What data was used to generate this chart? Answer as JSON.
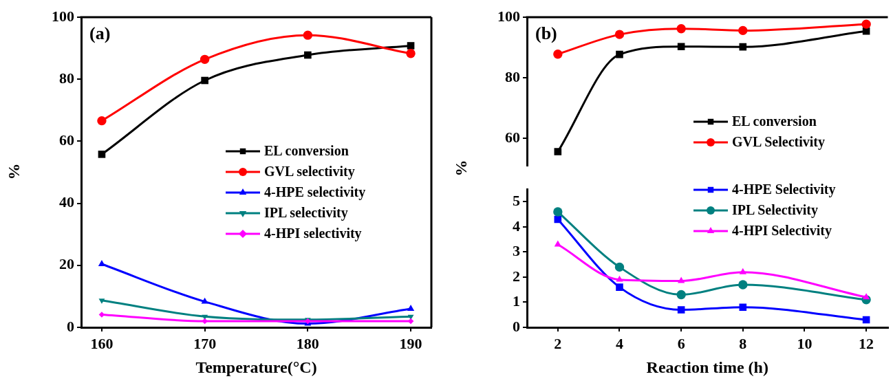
{
  "chart_data": [
    {
      "type": "line",
      "title": "(a)",
      "xlabel": "Temperature(°C)",
      "ylabel": "%",
      "x": [
        160,
        170,
        180,
        190
      ],
      "xlim": [
        158,
        192
      ],
      "xticks": [
        160,
        170,
        180,
        190
      ],
      "ylim": [
        0,
        100
      ],
      "yticks": [
        0,
        20,
        40,
        60,
        80,
        100
      ],
      "grid": false,
      "legend": "center right",
      "line_style": "solid",
      "series": [
        {
          "name": "EL conversion",
          "color": "#000000",
          "marker": "square",
          "values": [
            55.8,
            79.6,
            87.8,
            90.8
          ]
        },
        {
          "name": "GVL selectivity",
          "color": "#ff0000",
          "marker": "circle",
          "values": [
            66.6,
            86.4,
            94.2,
            88.3
          ]
        },
        {
          "name": "4-HPE selectivity",
          "color": "#0000ff",
          "marker": "triangle",
          "values": [
            20.4,
            8.3,
            1.2,
            6.0
          ]
        },
        {
          "name": "IPL selectivity",
          "color": "#008080",
          "marker": "triangle-down",
          "values": [
            8.7,
            3.5,
            2.5,
            3.5
          ]
        },
        {
          "name": "4-HPI selectivity",
          "color": "#ff00ff",
          "marker": "diamond",
          "values": [
            4.1,
            2.0,
            2.0,
            2.0
          ]
        }
      ]
    },
    {
      "type": "line",
      "title": "(b)",
      "x": [
        2,
        4,
        6,
        8,
        12
      ],
      "xlim": [
        1,
        12.7
      ],
      "xticks": [
        2,
        4,
        6,
        8,
        10,
        12
      ],
      "ylim": [
        51,
        100
      ],
      "yticks": [
        60,
        80,
        100
      ],
      "grid": false,
      "legend": "bottom right",
      "line_style": "solid",
      "tick_labels": "y",
      "series": [
        {
          "name": "EL conversion",
          "color": "#000000",
          "marker": "square",
          "values": [
            55.6,
            87.7,
            90.3,
            90.2,
            95.4
          ]
        },
        {
          "name": "GVL Selectivity",
          "color": "#ff0000",
          "marker": "circle",
          "values": [
            87.8,
            94.3,
            96.2,
            95.6,
            97.7
          ]
        }
      ]
    },
    {
      "type": "line",
      "xlabel": "Reaction time (h)",
      "ylabel": "%",
      "x": [
        2,
        4,
        6,
        8,
        12
      ],
      "xlim": [
        1,
        12.7
      ],
      "xticks": [
        2,
        4,
        6,
        8,
        10,
        12
      ],
      "ylim": [
        0,
        5.5
      ],
      "yticks": [
        0,
        1,
        2,
        3,
        4,
        5
      ],
      "grid": false,
      "legend": "top right",
      "line_style": "solid",
      "series": [
        {
          "name": "4-HPE Selectivity",
          "color": "#0000ff",
          "marker": "square",
          "values": [
            4.3,
            1.6,
            0.7,
            0.8,
            0.3
          ]
        },
        {
          "name": "IPL Selectivity",
          "color": "#008080",
          "marker": "circle",
          "values": [
            4.6,
            2.4,
            1.3,
            1.7,
            1.1
          ]
        },
        {
          "name": "4-HPI Selectivity",
          "color": "#ff00ff",
          "marker": "triangle",
          "values": [
            3.3,
            1.9,
            1.85,
            2.2,
            1.2
          ]
        }
      ]
    }
  ]
}
